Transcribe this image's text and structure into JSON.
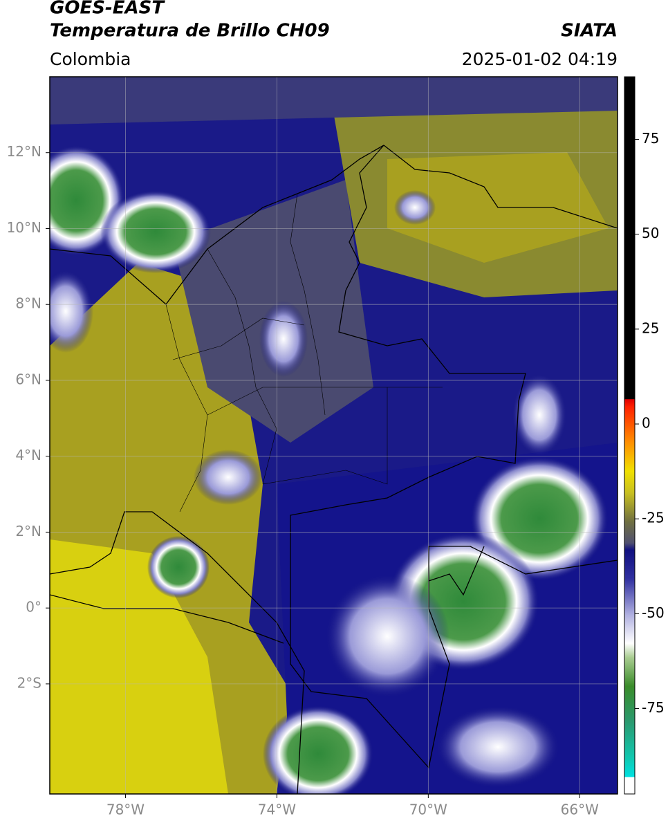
{
  "header": {
    "title_line1": "GOES-EAST",
    "title_line2": "Temperatura de Brillo CH09",
    "source": "SIATA",
    "region": "Colombia",
    "timestamp": "2025-01-02 04:19"
  },
  "map": {
    "xlim": [
      -80,
      -65
    ],
    "ylim": [
      -4.9,
      14
    ],
    "grid": true,
    "xticks": [
      {
        "value": -78,
        "label": "78°W"
      },
      {
        "value": -74,
        "label": "74°W"
      },
      {
        "value": -70,
        "label": "70°W"
      },
      {
        "value": -66,
        "label": "66°W"
      }
    ],
    "yticks": [
      {
        "value": 12,
        "label": "12°N"
      },
      {
        "value": 10,
        "label": "10°N"
      },
      {
        "value": 8,
        "label": "8°N"
      },
      {
        "value": 6,
        "label": "6°N"
      },
      {
        "value": 4,
        "label": "4°N"
      },
      {
        "value": 2,
        "label": "2°N"
      },
      {
        "value": 0,
        "label": "0°"
      },
      {
        "value": -2,
        "label": "2°S"
      }
    ]
  },
  "colorbar": {
    "lim": [
      -97.5,
      91.5
    ],
    "ticks": [
      75,
      50,
      25,
      0,
      -25,
      -50,
      -75
    ]
  }
}
